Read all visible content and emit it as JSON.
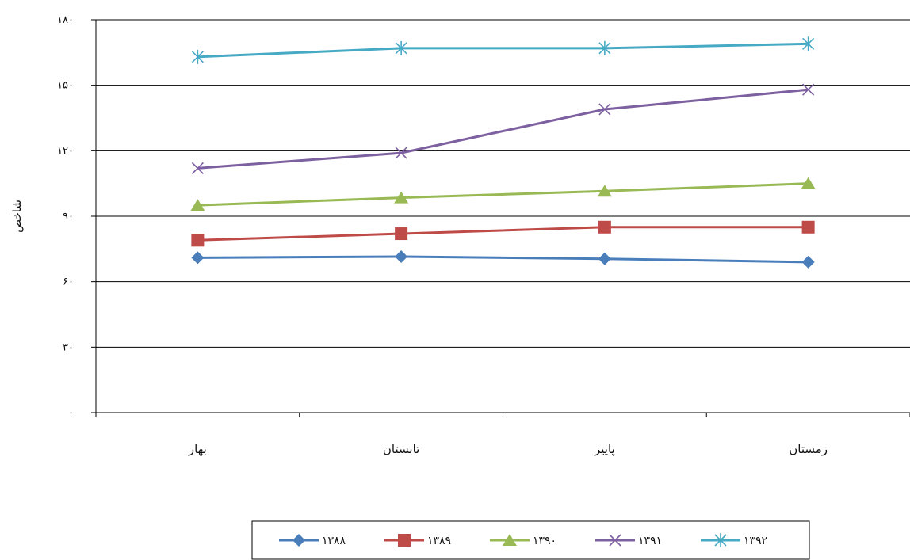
{
  "chart_data": {
    "type": "line",
    "categories": [
      "بهار",
      "تابستان",
      "پاییز",
      "زمستان"
    ],
    "series": [
      {
        "name": "۱۳۸۸",
        "values": [
          71,
          71.5,
          70.5,
          69
        ],
        "color": "#4a7ebb",
        "marker": "diamond"
      },
      {
        "name": "۱۳۸۹",
        "values": [
          79,
          82,
          85,
          85
        ],
        "color": "#be4b48",
        "marker": "square"
      },
      {
        "name": "۱۳۹۰",
        "values": [
          95,
          98.5,
          101.5,
          105
        ],
        "color": "#98b954",
        "marker": "triangle"
      },
      {
        "name": "۱۳۹۱",
        "values": [
          112,
          119,
          139,
          148
        ],
        "color": "#7d60a0",
        "marker": "x"
      },
      {
        "name": "۱۳۹۲",
        "values": [
          163,
          167,
          167,
          169
        ],
        "color": "#46aac5",
        "marker": "star"
      }
    ],
    "ylabel": "شاخص",
    "xlabel": "",
    "ylim": [
      0,
      180
    ],
    "yticks": [
      {
        "value": 0,
        "label": "۰"
      },
      {
        "value": 30,
        "label": "۳۰"
      },
      {
        "value": 60,
        "label": "۶۰"
      },
      {
        "value": 90,
        "label": "۹۰"
      },
      {
        "value": 120,
        "label": "۱۲۰"
      },
      {
        "value": 150,
        "label": "۱۵۰"
      },
      {
        "value": 180,
        "label": "۱۸۰"
      }
    ],
    "grid": true,
    "legend_position": "bottom"
  }
}
